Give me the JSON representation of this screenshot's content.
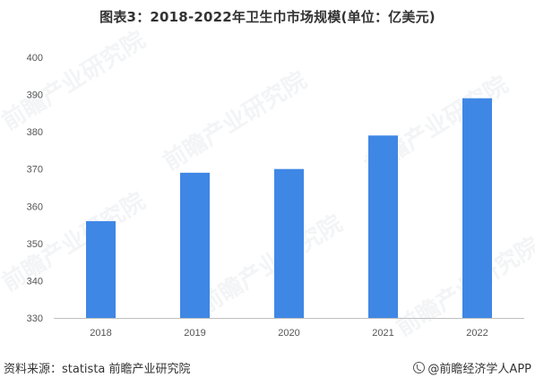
{
  "chart_data": {
    "type": "bar",
    "title": "图表3：2018-2022年卫生巾市场规模(单位：亿美元)",
    "categories": [
      "2018",
      "2019",
      "2020",
      "2021",
      "2022"
    ],
    "values": [
      356,
      369,
      370,
      379,
      389
    ],
    "ylim": [
      330,
      400
    ],
    "yticks": [
      330,
      340,
      350,
      360,
      370,
      380,
      390,
      400
    ],
    "xlabel": "",
    "ylabel": "",
    "grid": false,
    "bar_color": "#3f87e5"
  },
  "footer": {
    "source": "资料来源：statista 前瞻产业研究院",
    "brand": "@前瞻经济学人APP"
  },
  "watermark": {
    "text": "前瞻产业研究院"
  }
}
